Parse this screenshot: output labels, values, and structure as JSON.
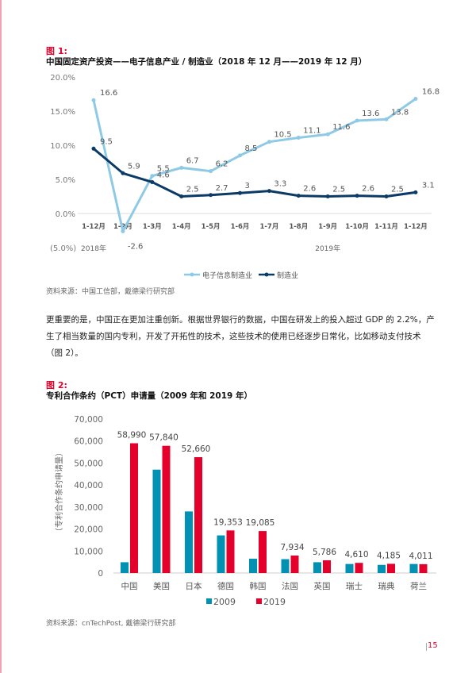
{
  "figure1": {
    "label": "图 1:",
    "title": "中国固定资产投资——电子信息产业 / 制造业（2018 年 12 月——2019 年 12 月）",
    "source": "资料来源：中国工信部，戴德梁行研究部"
  },
  "paragraph": "更重要的是，中国正在更加注重创新。根据世界银行的数据，中国在研发上的投入超过 GDP 的 2.2%，产生了相当数量的国内专利，开发了开拓性的技术，这些技术的使用已经逐步日常化，比如移动支付技术（图 2）。",
  "figure2": {
    "label": "图 2:",
    "title": "专利合作条约（PCT）申请量（2009 年和 2019 年）",
    "source": "资料来源：cnTechPost, 戴德梁行研究部"
  },
  "page_number": "15",
  "colors": {
    "accent": "#e4002b",
    "light_blue": "#8ecae6",
    "navy": "#0b3a66",
    "teal": "#0091b3",
    "red": "#e4002b"
  },
  "chart_data": [
    {
      "type": "line",
      "categories": [
        "1-12月",
        "1-2月",
        "1-3月",
        "1-4月",
        "1-5月",
        "1-6月",
        "1-7月",
        "1-8月",
        "1-9月",
        "1-10月",
        "1-11月",
        "1-12月"
      ],
      "group_labels": [
        "2018年",
        "2019年"
      ],
      "yticks": [
        "20.0%",
        "15.0%",
        "10.0%",
        "5.0%",
        "0.0%",
        "(5.0%)"
      ],
      "ylim": [
        -5,
        20
      ],
      "series": [
        {
          "name": "电子信息制造业",
          "color": "#8ecae6",
          "values": [
            16.6,
            -2.6,
            5.5,
            6.7,
            6.2,
            8.5,
            10.5,
            11.1,
            11.6,
            13.6,
            13.8,
            16.8
          ],
          "labels": [
            "16.6",
            "-2.6",
            "5.5",
            "6.7",
            "6.2",
            "8.5",
            "10.5",
            "11.1",
            "11.6",
            "13.6",
            "13.8",
            "16.8"
          ]
        },
        {
          "name": "制造业",
          "color": "#0b3a66",
          "values": [
            9.5,
            5.9,
            4.6,
            2.5,
            2.7,
            3,
            3.3,
            2.6,
            2.5,
            2.6,
            2.5,
            3.1
          ],
          "labels": [
            "9.5",
            "5.9",
            "4.6",
            "2.5",
            "2.7",
            "3",
            "3.3",
            "2.6",
            "2.5",
            "2.6",
            "2.5",
            "3.1"
          ]
        }
      ],
      "legend": "bottom",
      "grid": false
    },
    {
      "type": "bar",
      "categories": [
        "中国",
        "美国",
        "日本",
        "德国",
        "韩国",
        "法国",
        "英国",
        "瑞士",
        "瑞典",
        "荷兰"
      ],
      "ylabel": "（专利合作条约申请量）",
      "yticks": [
        "0",
        "10,000",
        "20,000",
        "30,000",
        "40,000",
        "50,000",
        "60,000",
        "70,000"
      ],
      "ylim": [
        0,
        70000
      ],
      "series": [
        {
          "name": "2009",
          "color": "#0091b3",
          "values": [
            4900,
            47000,
            28000,
            17100,
            6500,
            6300,
            4900,
            4100,
            3700,
            4100
          ]
        },
        {
          "name": "2019",
          "color": "#e4002b",
          "values": [
            58990,
            57840,
            52660,
            19353,
            19085,
            7934,
            5786,
            4610,
            4185,
            4011
          ],
          "labels": [
            "58,990",
            "57,840",
            "52,660",
            "19,353",
            "19,085",
            "7,934",
            "5,786",
            "4,610",
            "4,185",
            "4,011"
          ]
        }
      ],
      "legend": "bottom",
      "grid": false
    }
  ]
}
